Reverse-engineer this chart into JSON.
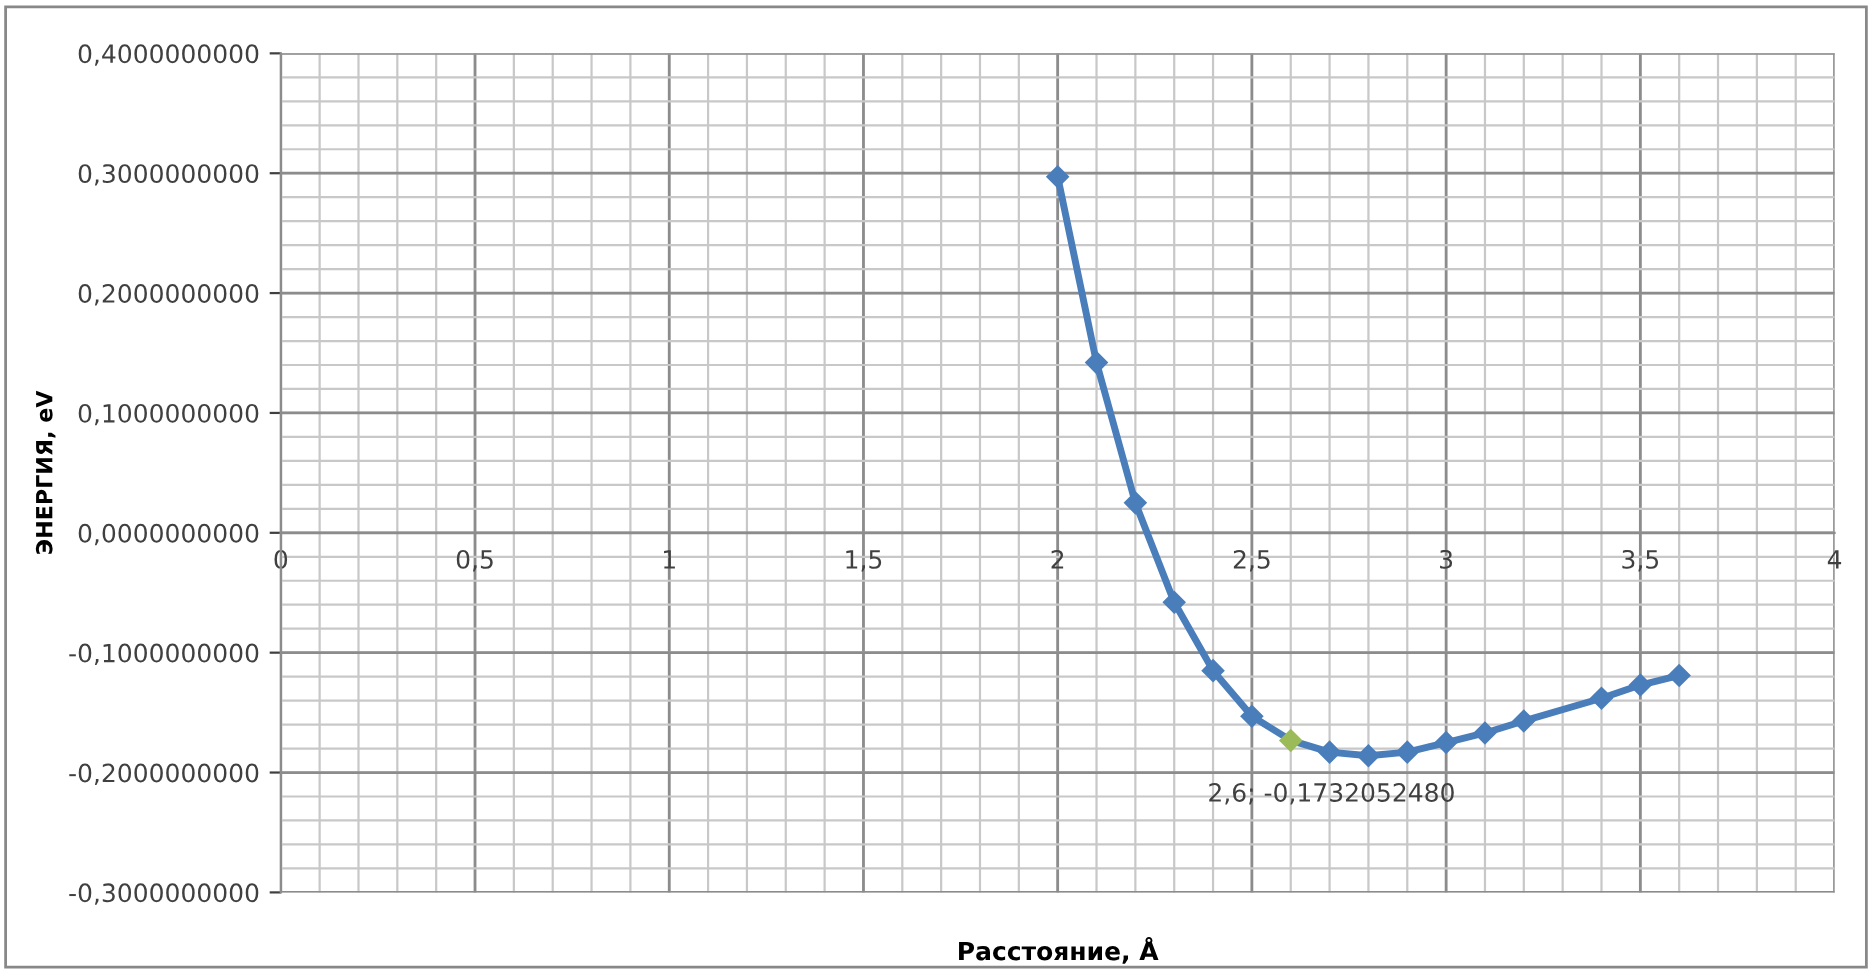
{
  "chart_data": {
    "type": "line",
    "xlabel": "Расстояние, Å",
    "ylabel": "ЭНЕРГИЯ, eV",
    "x": [
      2.0,
      2.1,
      2.2,
      2.3,
      2.4,
      2.5,
      2.6,
      2.7,
      2.8,
      2.9,
      3.0,
      3.1,
      3.2,
      3.4,
      3.5,
      3.6
    ],
    "series": [
      {
        "color": "#4a7ebb",
        "values": [
          0.297,
          0.142,
          0.025,
          -0.058,
          -0.115,
          -0.153,
          -0.173205248,
          -0.183,
          -0.186,
          -0.183,
          -0.175,
          -0.167,
          -0.157,
          -0.138,
          -0.127,
          -0.119
        ],
        "colors": [
          "#4a7ebb",
          "#4a7ebb",
          "#4a7ebb",
          "#4a7ebb",
          "#4a7ebb",
          "#4a7ebb",
          "#9bbb59",
          "#4a7ebb",
          "#4a7ebb",
          "#4a7ebb",
          "#4a7ebb",
          "#4a7ebb",
          "#4a7ebb",
          "#4a7ebb",
          "#4a7ebb",
          "#4a7ebb"
        ]
      }
    ],
    "marker": "diamond",
    "xlim": [
      0,
      4
    ],
    "xticks": [
      0,
      {
        "value": 0.5,
        "label": "0,5"
      },
      1,
      {
        "value": 1.5,
        "label": "1,5"
      },
      2,
      {
        "value": 2.5,
        "label": "2,5"
      },
      3,
      {
        "value": 3.5,
        "label": "3,5"
      },
      4
    ],
    "ylim": [
      -0.3,
      0.4
    ],
    "yticks": [
      {
        "value": -0.3,
        "label": "-0,3000000000"
      },
      {
        "value": -0.2,
        "label": "-0,2000000000"
      },
      {
        "value": -0.1,
        "label": "-0,1000000000"
      },
      {
        "value": 0,
        "label": "0,0000000000"
      },
      {
        "value": 0.1,
        "label": "0,1000000000"
      },
      {
        "value": 0.2,
        "label": "0,2000000000"
      },
      {
        "value": 0.3,
        "label": "0,3000000000"
      },
      {
        "value": 0.4,
        "label": "0,4000000000"
      }
    ],
    "grid": true,
    "annotations": [
      {
        "text": "2,6; -0,1732052480",
        "x": 2.6,
        "y": -0.173205248
      }
    ]
  }
}
